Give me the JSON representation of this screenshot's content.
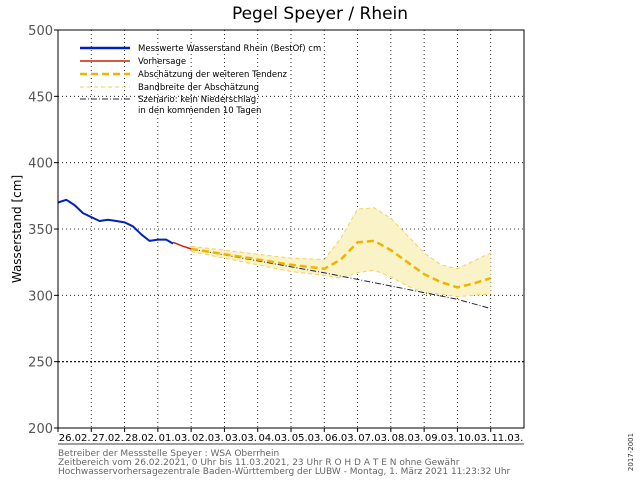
{
  "chart_data": {
    "type": "line",
    "title": "Pegel Speyer / Rhein",
    "ylabel": "Wasserstand [cm]",
    "ylim": [
      200,
      500
    ],
    "yticks": [
      200,
      250,
      300,
      350,
      400,
      450,
      500
    ],
    "xlim": [
      "2021-02-26",
      "2021-03-11"
    ],
    "categories": [
      "26.02.",
      "27.02.",
      "28.02.",
      "01.03.",
      "02.03.",
      "03.03.",
      "04.03.",
      "05.03.",
      "06.03.",
      "07.03.",
      "08.03.",
      "09.03.",
      "10.03.",
      "11.03."
    ],
    "grid": true,
    "legend_position": "top-left",
    "series": [
      {
        "name": "Messwerte Wasserstand Rhein (BestOf)   cm",
        "style": "solid",
        "color": "#0022bb",
        "x": [
          "2021-02-26 00:00",
          "2021-02-26 06:00",
          "2021-02-26 12:00",
          "2021-02-26 18:00",
          "2021-02-27 00:00",
          "2021-02-27 06:00",
          "2021-02-27 12:00",
          "2021-02-27 18:00",
          "2021-02-28 00:00",
          "2021-02-28 06:00",
          "2021-02-28 12:00",
          "2021-02-28 18:00",
          "2021-03-01 00:00",
          "2021-03-01 06:00",
          "2021-03-01 11:00"
        ],
        "y": [
          370,
          372,
          368,
          362,
          359,
          356,
          357,
          356,
          355,
          352,
          346,
          341,
          342,
          342,
          339
        ]
      },
      {
        "name": "Vorhersage",
        "style": "solid",
        "color": "#cc2200",
        "x": [
          "2021-03-01 11:00",
          "2021-03-01 18:00",
          "2021-03-02 00:00"
        ],
        "y": [
          340,
          337,
          335
        ]
      },
      {
        "name": "Abschätzung der weiteren Tendenz",
        "style": "dashed",
        "color": "#f0b400",
        "x": [
          "2021-03-02 00:00",
          "2021-03-03 00:00",
          "2021-03-04 00:00",
          "2021-03-05 00:00",
          "2021-03-06 00:00",
          "2021-03-06 12:00",
          "2021-03-07 00:00",
          "2021-03-07 12:00",
          "2021-03-08 00:00",
          "2021-03-08 12:00",
          "2021-03-09 00:00",
          "2021-03-09 12:00",
          "2021-03-10 00:00",
          "2021-03-10 12:00",
          "2021-03-11 00:00"
        ],
        "y": [
          335,
          331,
          327,
          323,
          320,
          327,
          340,
          341,
          334,
          325,
          316,
          310,
          306,
          309,
          313
        ]
      },
      {
        "name": "Bandbreite der Abschätzung",
        "style": "band",
        "color": "#f2d060",
        "x": [
          "2021-03-02 00:00",
          "2021-03-03 00:00",
          "2021-03-04 00:00",
          "2021-03-05 00:00",
          "2021-03-06 00:00",
          "2021-03-06 12:00",
          "2021-03-07 00:00",
          "2021-03-07 12:00",
          "2021-03-08 00:00",
          "2021-03-08 12:00",
          "2021-03-09 00:00",
          "2021-03-09 12:00",
          "2021-03-10 00:00",
          "2021-03-10 12:00",
          "2021-03-11 00:00"
        ],
        "upper": [
          337,
          334,
          331,
          328,
          327,
          343,
          365,
          366,
          358,
          345,
          332,
          323,
          320,
          326,
          332
        ],
        "lower": [
          333,
          328,
          323,
          318,
          315,
          313,
          317,
          319,
          314,
          307,
          302,
          301,
          299,
          300,
          301
        ]
      },
      {
        "name": "Szenario: kein Niederschlag",
        "style": "dashdot",
        "color": "#222244",
        "x": [
          "2021-03-02 00:00",
          "2021-03-06 00:00",
          "2021-03-08 00:00",
          "2021-03-10 00:00",
          "2021-03-11 00:00"
        ],
        "y": [
          335,
          317,
          307,
          297,
          290
        ]
      }
    ],
    "legend": [
      "Messwerte Wasserstand Rhein (BestOf)   cm",
      "Vorhersage",
      "Abschätzung der weiteren Tendenz",
      "Bandbreite der Abschätzung",
      "Szenario: kein Niederschlag",
      "in den kommenden 10 Tagen"
    ]
  },
  "footer": {
    "line1": "Betreiber der Messstelle Speyer : WSA Oberrhein",
    "line2": "Zeitbereich vom 26.02.2021, 0 Uhr bis 11.03.2021, 23 Uhr    R O H D A T E N ohne Gewähr",
    "line3": "Hochwasservorhersagezentrale Baden-Württemberg der LUBW - Montag, 1. März 2021 11:23:32 Uhr"
  },
  "side_note": "2017-2001"
}
